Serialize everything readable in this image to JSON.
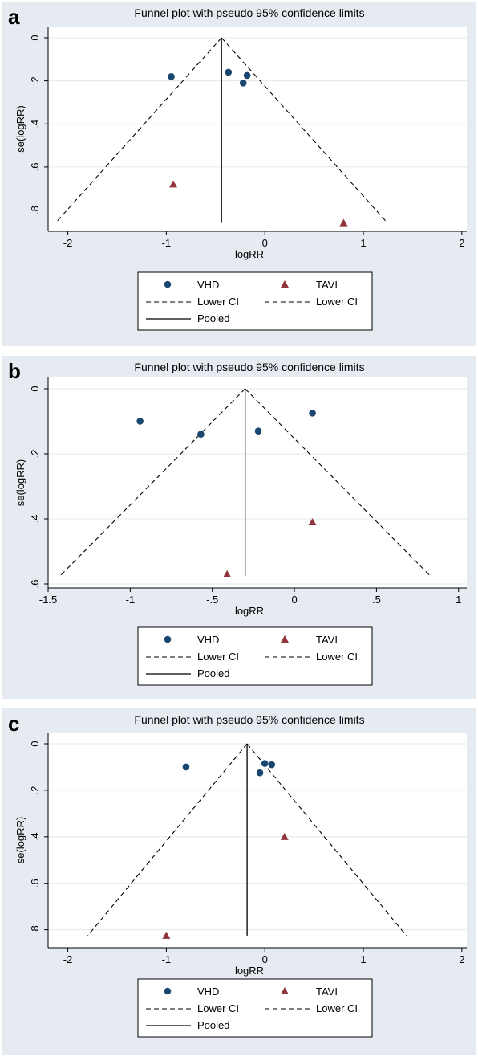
{
  "chart_data": [
    {
      "type": "scatter",
      "panel_label": "a",
      "title": "Funnel plot with pseudo 95% confidence limits",
      "xlabel": "logRR",
      "ylabel": "se(logRR)",
      "xlim": [
        -2.2,
        2.05
      ],
      "ylim": [
        0,
        0.88
      ],
      "y_reversed": true,
      "x_ticks": [
        {
          "value": -2,
          "label": "-2"
        },
        {
          "value": -1,
          "label": "-1"
        },
        {
          "value": 0,
          "label": "0"
        },
        {
          "value": 1,
          "label": "1"
        },
        {
          "value": 2,
          "label": "2"
        }
      ],
      "y_ticks": [
        {
          "value": 0,
          "label": "0"
        },
        {
          "value": 0.2,
          "label": ".2"
        },
        {
          "value": 0.4,
          "label": ".4"
        },
        {
          "value": 0.6,
          "label": ".6"
        },
        {
          "value": 0.8,
          "label": ".8"
        }
      ],
      "grid": "horizontal",
      "pooled": -0.44,
      "se_max": 0.86,
      "series": [
        {
          "name": "VHD",
          "marker": "circle",
          "color": "#1a476f",
          "points": [
            {
              "x": -0.95,
              "y": 0.18
            },
            {
              "x": -0.37,
              "y": 0.16
            },
            {
              "x": -0.18,
              "y": 0.175
            },
            {
              "x": -0.22,
              "y": 0.21
            }
          ]
        },
        {
          "name": "TAVI",
          "marker": "triangle",
          "color": "#90353b",
          "points": [
            {
              "x": -0.93,
              "y": 0.68
            },
            {
              "x": 0.8,
              "y": 0.86
            }
          ]
        }
      ],
      "legend": {
        "placement": "bottom",
        "items": [
          "VHD",
          "TAVI",
          "Lower CI",
          "Lower CI",
          "Pooled"
        ]
      }
    },
    {
      "type": "scatter",
      "panel_label": "b",
      "title": "Funnel plot with pseudo 95% confidence limits",
      "xlabel": "logRR",
      "ylabel": "se(logRR)",
      "xlim": [
        -1.5,
        1.05
      ],
      "ylim": [
        0,
        0.6
      ],
      "y_reversed": true,
      "x_ticks": [
        {
          "value": -1.5,
          "label": "-1.5"
        },
        {
          "value": -1,
          "label": "-1"
        },
        {
          "value": -0.5,
          "label": "-.5"
        },
        {
          "value": 0,
          "label": "0"
        },
        {
          "value": 0.5,
          "label": ".5"
        },
        {
          "value": 1,
          "label": "1"
        }
      ],
      "y_ticks": [
        {
          "value": 0,
          "label": "0"
        },
        {
          "value": 0.2,
          "label": ".2"
        },
        {
          "value": 0.4,
          "label": ".4"
        },
        {
          "value": 0.6,
          "label": ".6"
        }
      ],
      "grid": "horizontal",
      "pooled": -0.3,
      "se_max": 0.575,
      "series": [
        {
          "name": "VHD",
          "marker": "circle",
          "color": "#1a476f",
          "points": [
            {
              "x": -0.94,
              "y": 0.1
            },
            {
              "x": -0.57,
              "y": 0.14
            },
            {
              "x": -0.22,
              "y": 0.13
            },
            {
              "x": 0.11,
              "y": 0.075
            }
          ]
        },
        {
          "name": "TAVI",
          "marker": "triangle",
          "color": "#90353b",
          "points": [
            {
              "x": -0.41,
              "y": 0.57
            },
            {
              "x": 0.11,
              "y": 0.41
            }
          ]
        }
      ],
      "legend": {
        "placement": "bottom",
        "items": [
          "VHD",
          "TAVI",
          "Lower CI",
          "Lower CI",
          "Pooled"
        ]
      }
    },
    {
      "type": "scatter",
      "panel_label": "c",
      "title": "Funnel plot with pseudo 95% confidence limits",
      "xlabel": "logRR",
      "ylabel": "se(logRR)",
      "xlim": [
        -2.2,
        2.05
      ],
      "ylim": [
        0,
        0.86
      ],
      "y_reversed": true,
      "x_ticks": [
        {
          "value": -2,
          "label": "-2"
        },
        {
          "value": -1,
          "label": "-1"
        },
        {
          "value": 0,
          "label": "0"
        },
        {
          "value": 1,
          "label": "1"
        },
        {
          "value": 2,
          "label": "2"
        }
      ],
      "y_ticks": [
        {
          "value": 0,
          "label": "0"
        },
        {
          "value": 0.2,
          "label": ".2"
        },
        {
          "value": 0.4,
          "label": ".4"
        },
        {
          "value": 0.6,
          "label": ".6"
        },
        {
          "value": 0.8,
          "label": ".8"
        }
      ],
      "grid": "horizontal",
      "pooled": -0.18,
      "se_max": 0.825,
      "series": [
        {
          "name": "VHD",
          "marker": "circle",
          "color": "#1a476f",
          "points": [
            {
              "x": -0.8,
              "y": 0.1
            },
            {
              "x": 0.0,
              "y": 0.085
            },
            {
              "x": 0.07,
              "y": 0.09
            },
            {
              "x": -0.05,
              "y": 0.125
            }
          ]
        },
        {
          "name": "TAVI",
          "marker": "triangle",
          "color": "#90353b",
          "points": [
            {
              "x": 0.2,
              "y": 0.4
            },
            {
              "x": -1.0,
              "y": 0.825
            }
          ]
        }
      ],
      "legend": {
        "placement": "bottom",
        "items": [
          "VHD",
          "TAVI",
          "Lower CI",
          "Lower CI",
          "Pooled"
        ]
      }
    }
  ]
}
